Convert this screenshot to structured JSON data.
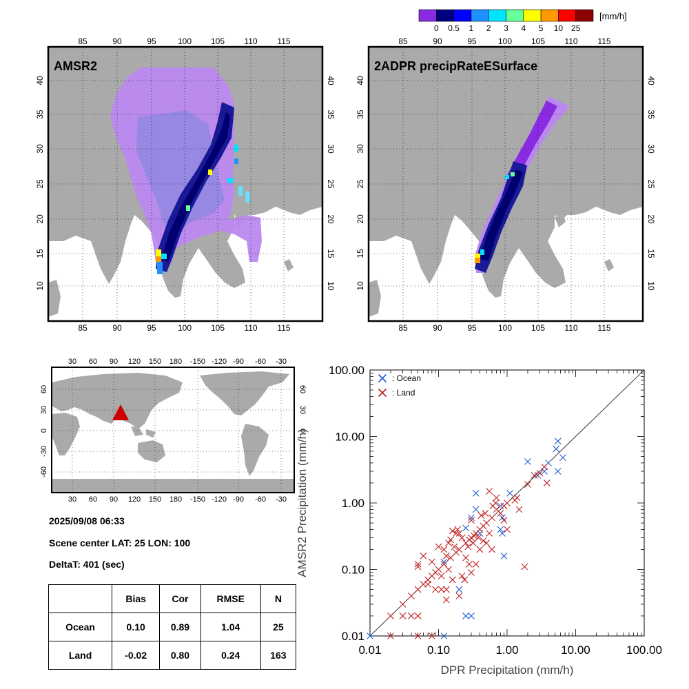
{
  "colorbar": {
    "unit": "[mm/h]",
    "tick_labels": [
      "0",
      "0.5",
      "1",
      "2",
      "3",
      "4",
      "5",
      "10",
      "25"
    ],
    "colors": [
      "#8a2be2",
      "#000080",
      "#0000ff",
      "#1e90ff",
      "#00e5ff",
      "#66ff99",
      "#ffff00",
      "#ff9900",
      "#ff0000",
      "#8b0000"
    ]
  },
  "map_panels": [
    {
      "title": "AMSR2",
      "lon_ticks": [
        "85",
        "90",
        "95",
        "100",
        "105",
        "110",
        "115"
      ],
      "lat_ticks": [
        "10",
        "15",
        "20",
        "25",
        "30",
        "35",
        "40"
      ]
    },
    {
      "title": "2ADPR precipRateESurface",
      "lon_ticks": [
        "85",
        "90",
        "95",
        "100",
        "105",
        "110",
        "115"
      ],
      "lat_ticks": [
        "10",
        "15",
        "20",
        "25",
        "30",
        "35",
        "40"
      ]
    }
  ],
  "world_map": {
    "lon_ticks": [
      "30",
      "60",
      "90",
      "120",
      "150",
      "180",
      "-150",
      "-120",
      "-90",
      "-60",
      "-30"
    ],
    "lat_ticks": [
      "-60",
      "-30",
      "0",
      "30",
      "60"
    ],
    "marker": {
      "lon": 100,
      "lat": 25,
      "color": "#cc0000"
    }
  },
  "scene_info": {
    "datetime": "2025/09/08 06:33",
    "center_line": "Scene center LAT: 25   LON: 100",
    "delta_line": "DeltaT:  401 (sec)"
  },
  "stats_table": {
    "headers": [
      "",
      "Bias",
      "Cor",
      "RMSE",
      "N"
    ],
    "rows": [
      [
        "Ocean",
        "0.10",
        "0.89",
        "1.04",
        "25"
      ],
      [
        "Land",
        "-0.02",
        "0.80",
        "0.24",
        "163"
      ]
    ]
  },
  "chart_data": {
    "type": "scatter",
    "title": "",
    "xlabel": "DPR Precipitation (mm/h)",
    "ylabel": "AMSR2 Precipitation (mm/h)",
    "xscale": "log",
    "yscale": "log",
    "xlim": [
      0.01,
      100
    ],
    "ylim": [
      0.01,
      100
    ],
    "x_tick_labels": [
      "0.01",
      "0.10",
      "1.00",
      "10.00",
      "100.00"
    ],
    "y_tick_labels": [
      "0.01",
      "0.10",
      "1.00",
      "10.00",
      "100.00"
    ],
    "reference_line": "1:1",
    "legend_position": "top-left",
    "series": [
      {
        "name": ": Ocean",
        "color": "#1f5fd0",
        "marker": "x",
        "points": [
          [
            5.5,
            8.5
          ],
          [
            5.2,
            6.5
          ],
          [
            6.5,
            4.8
          ],
          [
            4.0,
            4.0
          ],
          [
            5.5,
            3.0
          ],
          [
            3.5,
            3.0
          ],
          [
            2.0,
            4.2
          ],
          [
            2.8,
            2.6
          ],
          [
            1.1,
            1.4
          ],
          [
            0.35,
            1.4
          ],
          [
            0.8,
            0.9
          ],
          [
            0.85,
            0.6
          ],
          [
            0.85,
            0.35
          ],
          [
            0.8,
            0.4
          ],
          [
            0.35,
            0.8
          ],
          [
            0.9,
            0.16
          ],
          [
            0.3,
            0.6
          ],
          [
            0.25,
            0.42
          ],
          [
            0.12,
            0.13
          ],
          [
            0.2,
            0.05
          ],
          [
            0.25,
            0.02
          ],
          [
            0.3,
            0.02
          ],
          [
            0.01,
            0.01
          ],
          [
            0.12,
            0.01
          ],
          [
            0.4,
            0.35
          ]
        ]
      },
      {
        "name": ": Land",
        "color": "#c02020",
        "marker": "x",
        "points": [
          [
            3.5,
            3.5
          ],
          [
            2.5,
            2.6
          ],
          [
            3.0,
            2.8
          ],
          [
            3.8,
            2.0
          ],
          [
            2.0,
            1.9
          ],
          [
            1.4,
            1.2
          ],
          [
            1.3,
            1.1
          ],
          [
            1.0,
            1.0
          ],
          [
            0.9,
            0.9
          ],
          [
            0.7,
            0.8
          ],
          [
            0.8,
            0.7
          ],
          [
            0.6,
            0.6
          ],
          [
            0.55,
            1.5
          ],
          [
            0.7,
            1.2
          ],
          [
            1.5,
            0.8
          ],
          [
            0.5,
            0.5
          ],
          [
            0.45,
            0.45
          ],
          [
            0.4,
            0.4
          ],
          [
            0.35,
            0.35
          ],
          [
            0.3,
            0.3
          ],
          [
            0.32,
            0.25
          ],
          [
            0.28,
            0.28
          ],
          [
            0.25,
            0.25
          ],
          [
            0.2,
            0.2
          ],
          [
            0.22,
            0.3
          ],
          [
            0.18,
            0.18
          ],
          [
            0.15,
            0.15
          ],
          [
            0.17,
            0.22
          ],
          [
            0.12,
            0.12
          ],
          [
            0.13,
            0.16
          ],
          [
            0.1,
            0.1
          ],
          [
            0.11,
            0.08
          ],
          [
            0.09,
            0.09
          ],
          [
            0.08,
            0.08
          ],
          [
            0.07,
            0.07
          ],
          [
            0.06,
            0.06
          ],
          [
            0.05,
            0.12
          ],
          [
            0.05,
            0.11
          ],
          [
            0.05,
            0.05
          ],
          [
            0.04,
            0.04
          ],
          [
            0.03,
            0.03
          ],
          [
            0.02,
            0.02
          ],
          [
            0.03,
            0.02
          ],
          [
            0.05,
            0.02
          ],
          [
            0.04,
            0.02
          ],
          [
            0.02,
            0.01
          ],
          [
            0.05,
            0.01
          ],
          [
            0.08,
            0.01
          ],
          [
            0.16,
            0.38
          ],
          [
            0.18,
            0.35
          ],
          [
            0.15,
            0.28
          ],
          [
            0.14,
            0.25
          ],
          [
            0.19,
            0.4
          ],
          [
            0.25,
            0.15
          ],
          [
            0.28,
            0.12
          ],
          [
            0.35,
            0.12
          ],
          [
            0.3,
            0.09
          ],
          [
            0.24,
            0.07
          ],
          [
            0.13,
            0.05
          ],
          [
            0.11,
            0.05
          ],
          [
            0.09,
            0.05
          ],
          [
            0.07,
            0.06
          ],
          [
            0.08,
            0.13
          ],
          [
            0.06,
            0.16
          ],
          [
            0.12,
            0.2
          ],
          [
            0.1,
            0.22
          ],
          [
            0.45,
            0.27
          ],
          [
            0.5,
            0.25
          ],
          [
            0.6,
            0.2
          ],
          [
            0.55,
            0.35
          ],
          [
            0.42,
            0.65
          ],
          [
            0.48,
            0.7
          ],
          [
            0.62,
            0.9
          ],
          [
            0.68,
            1.0
          ],
          [
            0.9,
            0.55
          ],
          [
            1.0,
            0.4
          ],
          [
            0.2,
            0.35
          ],
          [
            0.3,
            0.55
          ],
          [
            0.4,
            0.2
          ],
          [
            0.22,
            0.08
          ],
          [
            0.16,
            0.07
          ],
          [
            0.13,
            0.035
          ],
          [
            0.2,
            0.04
          ],
          [
            1.8,
            0.11
          ],
          [
            0.14,
            0.1
          ],
          [
            0.33,
            0.32
          ],
          [
            0.38,
            0.3
          ],
          [
            0.27,
            0.22
          ]
        ]
      }
    ]
  }
}
